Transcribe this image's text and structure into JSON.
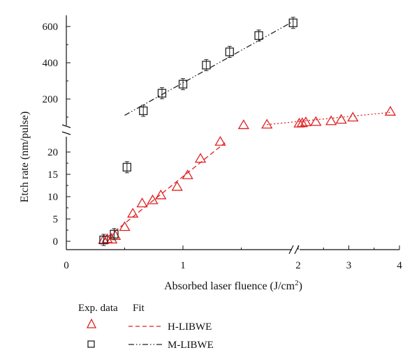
{
  "chart_data": {
    "type": "scatter",
    "xlabel": "Absorbed laser fluence (J/cm",
    "xlabel_superscript": "2",
    "xlabel_close": ")",
    "ylabel": "Etch rate (nm/pulse)",
    "x_break": [
      1.75,
      1.9
    ],
    "x_ticks_left": [
      0,
      1
    ],
    "x_ticks_right": [
      2,
      3,
      4
    ],
    "x_tick_labels_left": [
      "0",
      "1"
    ],
    "x_tick_labels_right": [
      "2",
      "3",
      "4"
    ],
    "x_range_left": [
      0,
      1.95
    ],
    "x_range_right": [
      1.9,
      4
    ],
    "y_break": [
      23,
      50
    ],
    "y_ticks_lower": [
      0,
      5,
      10,
      15,
      20
    ],
    "y_tick_labels_lower": [
      "0",
      "5",
      "10",
      "15",
      "20"
    ],
    "y_ticks_upper": [
      200,
      400,
      600
    ],
    "y_tick_labels_upper": [
      "200",
      "400",
      "600"
    ],
    "y_range_lower": [
      -1.5,
      23
    ],
    "y_range_upper": [
      50,
      650
    ],
    "legend": {
      "col_data": "Exp. data",
      "col_fit": "Fit",
      "entries": [
        {
          "marker": "triangle",
          "color": "#e02020",
          "line": "dashed",
          "label": "H-LIBWE"
        },
        {
          "marker": "square",
          "color": "#222222",
          "line": "dash-dot-dot",
          "label": "M-LIBWE"
        }
      ],
      "placement": "below-left"
    },
    "series": [
      {
        "name": "H-LIBWE",
        "marker": "triangle",
        "color": "#e02020",
        "points": [
          {
            "x": 0.32,
            "y": 0.3
          },
          {
            "x": 0.35,
            "y": 0.5
          },
          {
            "x": 0.39,
            "y": 0.4
          },
          {
            "x": 0.42,
            "y": 1.2
          },
          {
            "x": 0.5,
            "y": 3.2
          },
          {
            "x": 0.57,
            "y": 6.2
          },
          {
            "x": 0.65,
            "y": 8.5
          },
          {
            "x": 0.74,
            "y": 9.2
          },
          {
            "x": 0.81,
            "y": 10.3
          },
          {
            "x": 0.95,
            "y": 12.2
          },
          {
            "x": 1.04,
            "y": 14.8
          },
          {
            "x": 1.15,
            "y": 18.5
          },
          {
            "x": 1.32,
            "y": 22.3
          },
          {
            "x": 1.52,
            "y": 56
          },
          {
            "x": 1.72,
            "y": 59
          },
          {
            "x": 2.02,
            "y": 65
          },
          {
            "x": 2.08,
            "y": 67
          },
          {
            "x": 2.15,
            "y": 72
          },
          {
            "x": 2.35,
            "y": 74
          },
          {
            "x": 2.65,
            "y": 78
          },
          {
            "x": 2.85,
            "y": 86
          },
          {
            "x": 3.08,
            "y": 98
          },
          {
            "x": 3.82,
            "y": 130
          }
        ],
        "fit_segments": [
          {
            "style": "dashed",
            "x": [
              0.31,
              1.36
            ],
            "slope": 21.0,
            "intercept": -6.5
          },
          {
            "style": "dotted",
            "x": [
              1.72,
              3.85
            ],
            "y": [
              59,
              127
            ]
          }
        ]
      },
      {
        "name": "M-LIBWE",
        "marker": "square",
        "color": "#222222",
        "points": [
          {
            "x": 0.32,
            "y": 0.3
          },
          {
            "x": 0.41,
            "y": 1.6
          },
          {
            "x": 0.52,
            "y": 16.6
          },
          {
            "x": 0.66,
            "y": 135
          },
          {
            "x": 0.82,
            "y": 232
          },
          {
            "x": 1.0,
            "y": 282
          },
          {
            "x": 1.2,
            "y": 387
          },
          {
            "x": 1.4,
            "y": 460
          },
          {
            "x": 1.65,
            "y": 550
          },
          {
            "x": 1.9,
            "y": 620
          }
        ],
        "fit_segments": [
          {
            "style": "dash-dot-dot",
            "x": [
              0.5,
              1.9
            ],
            "y": [
              110,
              628
            ]
          }
        ]
      }
    ]
  }
}
